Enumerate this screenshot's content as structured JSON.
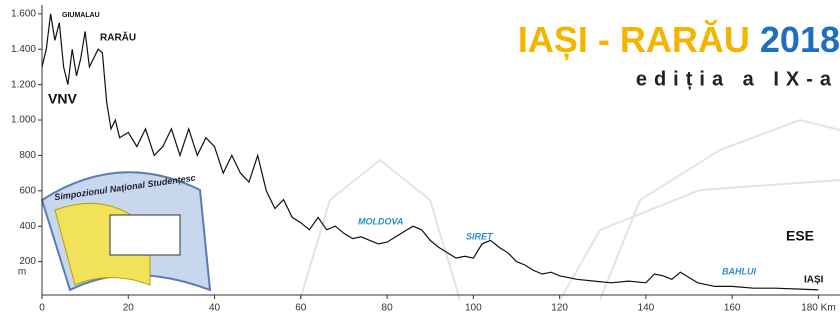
{
  "chart_data": {
    "type": "line",
    "title": [
      "IAȘI - RARĂU",
      "2018"
    ],
    "subtitle": "ediția a IX-a",
    "y_label": "m",
    "logo_text": "Simpozionul Național Studențesc",
    "annotations": [
      "GIUMALAU",
      "RARĂU",
      "VNV",
      "MOLDOVA",
      "SIRET",
      "ESE",
      "BAHLUI",
      "IAȘI"
    ],
    "x": [
      0,
      1,
      2,
      3,
      4,
      5,
      6,
      7,
      8,
      9,
      10,
      11,
      12,
      13,
      14,
      15,
      16,
      17,
      18,
      20,
      22,
      24,
      26,
      28,
      30,
      32,
      34,
      36,
      38,
      40,
      42,
      44,
      46,
      48,
      50,
      52,
      54,
      56,
      58,
      60,
      62,
      64,
      66,
      68,
      70,
      72,
      74,
      76,
      78,
      80,
      82,
      84,
      86,
      88,
      90,
      92,
      94,
      96,
      98,
      100,
      102,
      104,
      106,
      108,
      110,
      112,
      114,
      116,
      118,
      120,
      124,
      128,
      132,
      136,
      140,
      142,
      144,
      146,
      148,
      150,
      152,
      156,
      160,
      165,
      170,
      175,
      180
    ],
    "values": [
      1300,
      1400,
      1600,
      1450,
      1550,
      1300,
      1200,
      1400,
      1250,
      1350,
      1500,
      1300,
      1350,
      1400,
      1380,
      1100,
      950,
      1000,
      900,
      930,
      850,
      950,
      800,
      850,
      950,
      800,
      950,
      800,
      900,
      850,
      700,
      800,
      700,
      650,
      800,
      600,
      500,
      550,
      450,
      420,
      380,
      450,
      380,
      400,
      360,
      330,
      340,
      320,
      300,
      310,
      340,
      370,
      400,
      380,
      320,
      280,
      250,
      220,
      230,
      220,
      300,
      320,
      280,
      250,
      200,
      180,
      150,
      130,
      140,
      120,
      100,
      90,
      80,
      90,
      80,
      130,
      120,
      100,
      140,
      110,
      80,
      60,
      60,
      50,
      50,
      45,
      40
    ],
    "color": "#111111",
    "xlim": [
      0,
      185
    ],
    "ylim": [
      0,
      1650
    ],
    "xticks": [
      0,
      20,
      40,
      60,
      80,
      100,
      120,
      140,
      160,
      {
        "value": 180,
        "label": "180 Km"
      }
    ],
    "yticks": [
      200,
      400,
      600,
      800,
      {
        "value": 1000,
        "label": "1.000"
      },
      {
        "value": 1200,
        "label": "1.200"
      },
      {
        "value": 1400,
        "label": "1.400"
      },
      {
        "value": 1600,
        "label": "1.600"
      }
    ]
  }
}
